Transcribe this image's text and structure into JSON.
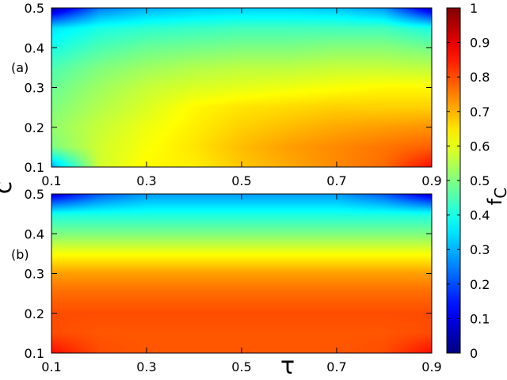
{
  "chart_data": {
    "type": "heatmap",
    "panels": [
      {
        "label": "(a)",
        "xlim": [
          0.1,
          0.9
        ],
        "ylim": [
          0.1,
          0.5
        ],
        "xticks": [
          "0.1",
          "0.3",
          "0.5",
          "0.7",
          "0.9"
        ],
        "yticks": [
          "0.1",
          "0.2",
          "0.3",
          "0.4",
          "0.5"
        ],
        "field_samples": {
          "x": [
            0.1,
            0.2,
            0.3,
            0.4,
            0.5,
            0.6,
            0.7,
            0.8,
            0.9
          ],
          "y": [
            0.1,
            0.15,
            0.2,
            0.25,
            0.3,
            0.35,
            0.4,
            0.45,
            0.5
          ],
          "values": [
            [
              0.3,
              0.58,
              0.63,
              0.64,
              0.68,
              0.71,
              0.74,
              0.77,
              0.86
            ],
            [
              0.5,
              0.58,
              0.62,
              0.65,
              0.69,
              0.72,
              0.74,
              0.76,
              0.78
            ],
            [
              0.52,
              0.57,
              0.61,
              0.64,
              0.67,
              0.69,
              0.71,
              0.72,
              0.73
            ],
            [
              0.5,
              0.55,
              0.59,
              0.63,
              0.65,
              0.66,
              0.67,
              0.67,
              0.67
            ],
            [
              0.48,
              0.53,
              0.57,
              0.59,
              0.6,
              0.61,
              0.62,
              0.63,
              0.63
            ],
            [
              0.45,
              0.5,
              0.53,
              0.55,
              0.56,
              0.56,
              0.57,
              0.57,
              0.56
            ],
            [
              0.4,
              0.45,
              0.48,
              0.49,
              0.5,
              0.5,
              0.51,
              0.51,
              0.49
            ],
            [
              0.35,
              0.4,
              0.42,
              0.43,
              0.44,
              0.44,
              0.44,
              0.44,
              0.4
            ],
            [
              0.05,
              0.25,
              0.3,
              0.32,
              0.33,
              0.33,
              0.32,
              0.28,
              0.08
            ]
          ]
        }
      },
      {
        "label": "(b)",
        "xlim": [
          0.1,
          0.9
        ],
        "ylim": [
          0.1,
          0.5
        ],
        "xticks": [
          "0.1",
          "0.3",
          "0.5",
          "0.7",
          "0.9"
        ],
        "yticks": [
          "0.1",
          "0.2",
          "0.3",
          "0.4",
          "0.5"
        ],
        "field_samples": {
          "x": [
            0.1,
            0.2,
            0.3,
            0.4,
            0.5,
            0.6,
            0.7,
            0.8,
            0.9
          ],
          "y": [
            0.1,
            0.15,
            0.2,
            0.25,
            0.3,
            0.35,
            0.4,
            0.45,
            0.5
          ],
          "values": [
            [
              0.86,
              0.8,
              0.79,
              0.79,
              0.79,
              0.79,
              0.79,
              0.8,
              0.86
            ],
            [
              0.8,
              0.79,
              0.79,
              0.79,
              0.79,
              0.79,
              0.79,
              0.79,
              0.8
            ],
            [
              0.8,
              0.8,
              0.8,
              0.8,
              0.8,
              0.8,
              0.8,
              0.8,
              0.8
            ],
            [
              0.77,
              0.77,
              0.77,
              0.77,
              0.77,
              0.77,
              0.77,
              0.77,
              0.77
            ],
            [
              0.72,
              0.72,
              0.72,
              0.72,
              0.72,
              0.72,
              0.72,
              0.72,
              0.72
            ],
            [
              0.62,
              0.62,
              0.62,
              0.62,
              0.62,
              0.62,
              0.62,
              0.62,
              0.62
            ],
            [
              0.5,
              0.5,
              0.5,
              0.5,
              0.5,
              0.5,
              0.5,
              0.5,
              0.5
            ],
            [
              0.4,
              0.4,
              0.4,
              0.4,
              0.4,
              0.4,
              0.4,
              0.4,
              0.4
            ],
            [
              0.1,
              0.22,
              0.28,
              0.28,
              0.28,
              0.28,
              0.28,
              0.22,
              0.1
            ]
          ]
        }
      }
    ],
    "xlabel": "τ",
    "ylabel": "c",
    "colorbar": {
      "label": "f",
      "label_subscript": "C",
      "range": [
        0,
        1
      ],
      "ticks": [
        "0",
        "0.1",
        "0.2",
        "0.3",
        "0.4",
        "0.5",
        "0.6",
        "0.7",
        "0.8",
        "0.9",
        "1"
      ],
      "colormap": "jet"
    },
    "grid": false
  }
}
